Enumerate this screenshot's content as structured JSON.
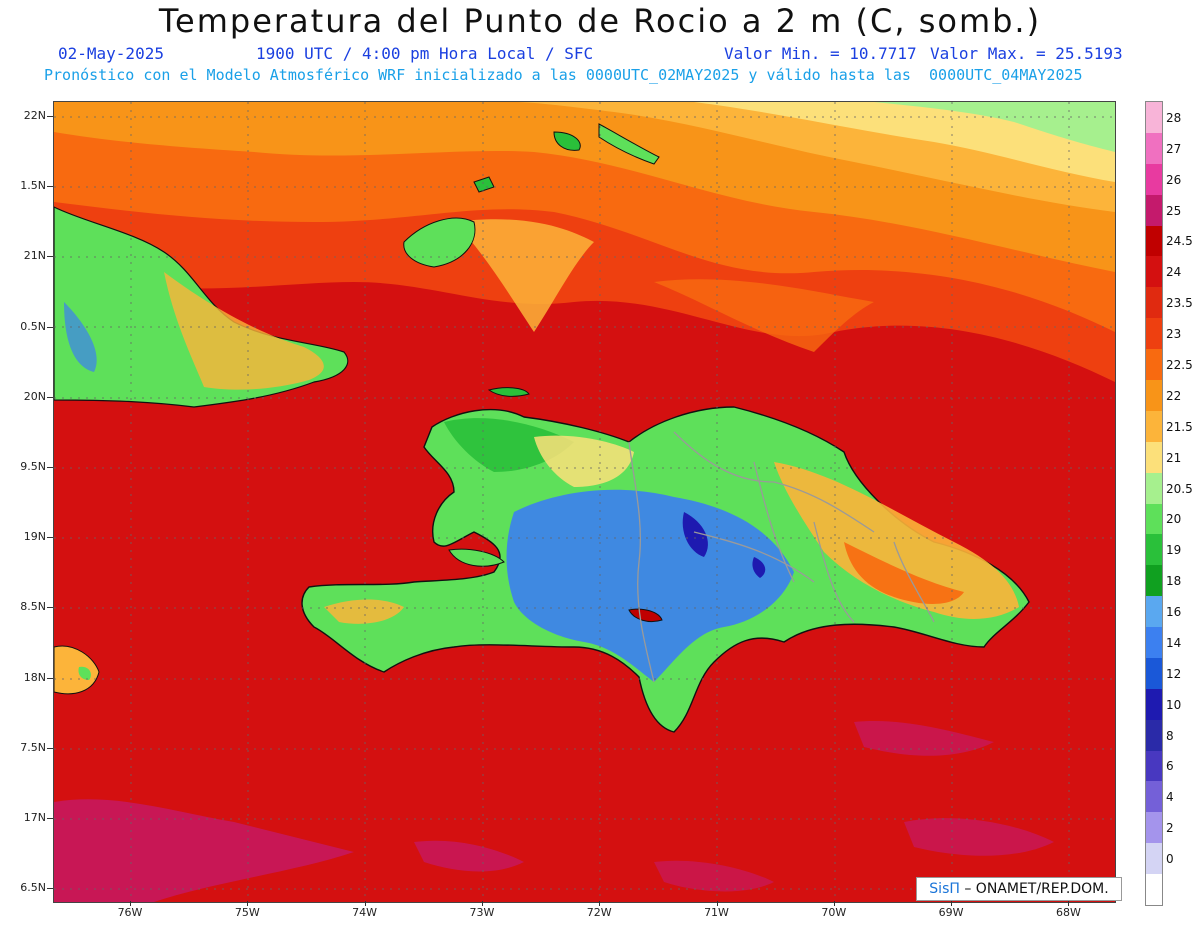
{
  "title": "Temperatura del Punto de Rocio a 2 m (C, somb.)",
  "date": "02-May-2025",
  "time": "1900 UTC / 4:00 pm Hora Local / SFC",
  "min_label": "Valor Min. = 10.7717",
  "max_label": "Valor Max. = 25.5193",
  "subtitle": "Pronóstico con el Modelo Atmosférico WRF inicializado a las 0000UTC_02MAY2025 y válido hasta las  0000UTC_04MAY2025",
  "credit": {
    "brand": "SisΠ",
    "text": "– ONAMET/REP.DOM."
  },
  "lat_labels": [
    "22N",
    "1.5N",
    "21N",
    "0.5N",
    "20N",
    "9.5N",
    "19N",
    "8.5N",
    "18N",
    "7.5N",
    "17N",
    "6.5N"
  ],
  "lon_labels": [
    "76W",
    "75W",
    "74W",
    "73W",
    "72W",
    "71W",
    "70W",
    "69W",
    "68W"
  ],
  "legend": [
    {
      "label": "28",
      "color": "#f8b4d8"
    },
    {
      "label": "27",
      "color": "#f070c0"
    },
    {
      "label": "26",
      "color": "#e83aa0"
    },
    {
      "label": "25",
      "color": "#c41a6c"
    },
    {
      "label": "24.5",
      "color": "#c00000"
    },
    {
      "label": "24",
      "color": "#d41010"
    },
    {
      "label": "23.5",
      "color": "#e02a10"
    },
    {
      "label": "23",
      "color": "#ee4010"
    },
    {
      "label": "22.5",
      "color": "#f86a10"
    },
    {
      "label": "22",
      "color": "#f89418"
    },
    {
      "label": "21.5",
      "color": "#fcb43a"
    },
    {
      "label": "21",
      "color": "#fce07a"
    },
    {
      "label": "20.5",
      "color": "#a6f08e"
    },
    {
      "label": "20",
      "color": "#5ee05a"
    },
    {
      "label": "19",
      "color": "#2ac03a"
    },
    {
      "label": "18",
      "color": "#10a020"
    },
    {
      "label": "16",
      "color": "#5aa8f0"
    },
    {
      "label": "14",
      "color": "#3c80f0"
    },
    {
      "label": "12",
      "color": "#1a58d8"
    },
    {
      "label": "10",
      "color": "#1e1ab0"
    },
    {
      "label": "8",
      "color": "#2a2aa8"
    },
    {
      "label": "6",
      "color": "#4838c0"
    },
    {
      "label": "4",
      "color": "#7460d8"
    },
    {
      "label": "2",
      "color": "#a494ec"
    },
    {
      "label": "0",
      "color": "#d4d4f4"
    },
    {
      "label": "",
      "color": "#ffffff"
    }
  ]
}
